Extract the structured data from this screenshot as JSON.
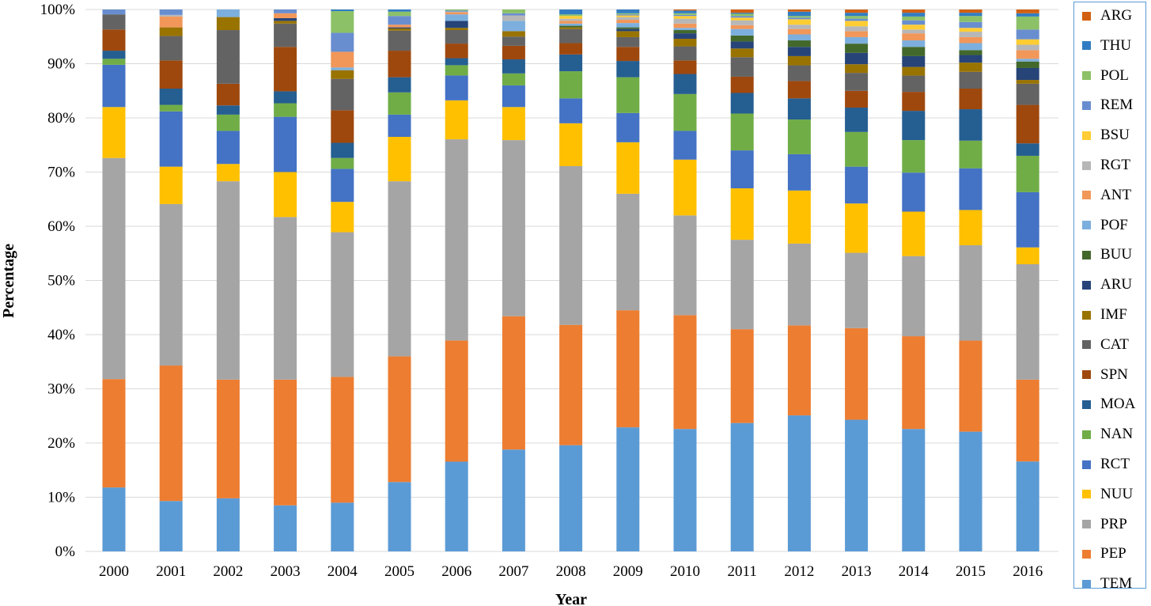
{
  "chart_data": {
    "type": "bar",
    "stacked": "percent",
    "xlabel": "Year",
    "ylabel": "Percentage",
    "ylim": [
      0,
      100
    ],
    "y_ticks": [
      "0%",
      "10%",
      "20%",
      "30%",
      "40%",
      "50%",
      "60%",
      "70%",
      "80%",
      "90%",
      "100%"
    ],
    "grid": true,
    "legend_position": "right",
    "categories": [
      "2000",
      "2001",
      "2002",
      "2003",
      "2004",
      "2005",
      "2006",
      "2007",
      "2008",
      "2009",
      "2010",
      "2011",
      "2012",
      "2013",
      "2014",
      "2015",
      "2016"
    ],
    "series": [
      {
        "name": "TEM",
        "color": "#5B9BD5",
        "values": [
          11.8,
          9.3,
          9.8,
          8.5,
          9.0,
          12.8,
          16.6,
          18.8,
          19.6,
          22.9,
          22.6,
          23.7,
          25.1,
          24.3,
          22.6,
          22.1,
          16.6
        ]
      },
      {
        "name": "PEP",
        "color": "#ED7D31",
        "values": [
          20.0,
          25.0,
          21.9,
          23.2,
          23.2,
          23.2,
          22.4,
          24.6,
          22.2,
          21.6,
          21.0,
          17.3,
          16.6,
          16.9,
          17.1,
          16.8,
          15.1
        ]
      },
      {
        "name": "PRP",
        "color": "#A5A5A5",
        "values": [
          40.8,
          29.8,
          36.6,
          30.0,
          26.7,
          32.3,
          37.2,
          32.5,
          29.3,
          21.5,
          18.4,
          16.5,
          15.1,
          13.9,
          14.8,
          17.6,
          21.3
        ]
      },
      {
        "name": "NUU",
        "color": "#FFC000",
        "values": [
          9.4,
          6.9,
          3.2,
          8.3,
          5.6,
          8.2,
          7.2,
          6.1,
          7.9,
          9.5,
          10.3,
          9.5,
          9.8,
          9.1,
          8.2,
          6.5,
          3.1
        ]
      },
      {
        "name": "RCT",
        "color": "#4472C4",
        "values": [
          7.8,
          10.2,
          6.1,
          10.2,
          6.1,
          4.1,
          4.6,
          4.0,
          4.6,
          5.4,
          5.3,
          7.0,
          6.7,
          6.8,
          7.2,
          7.7,
          10.2
        ]
      },
      {
        "name": "NAN",
        "color": "#70AD47",
        "values": [
          1.1,
          1.2,
          3.0,
          2.5,
          2.0,
          4.1,
          1.9,
          2.2,
          5.0,
          6.6,
          6.8,
          6.8,
          6.4,
          6.4,
          6.0,
          5.1,
          6.7
        ]
      },
      {
        "name": "MOA",
        "color": "#255E91",
        "values": [
          1.5,
          3.0,
          1.7,
          2.2,
          2.8,
          2.8,
          1.3,
          2.6,
          3.1,
          3.0,
          3.7,
          3.8,
          3.9,
          4.5,
          5.4,
          5.8,
          2.3
        ]
      },
      {
        "name": "SPN",
        "color": "#9E480E",
        "values": [
          3.9,
          5.2,
          4.0,
          8.2,
          6.0,
          4.9,
          2.7,
          2.5,
          2.1,
          2.6,
          2.5,
          3.0,
          3.2,
          3.1,
          3.5,
          3.8,
          7.1
        ]
      },
      {
        "name": "CAT",
        "color": "#636363",
        "values": [
          2.8,
          4.5,
          9.9,
          4.3,
          5.8,
          3.7,
          2.5,
          1.7,
          2.6,
          1.8,
          2.6,
          3.6,
          2.9,
          3.3,
          3.0,
          3.1,
          3.9
        ]
      },
      {
        "name": "IMF",
        "color": "#997300",
        "values": [
          0,
          1.6,
          2.4,
          0.5,
          1.6,
          0.4,
          0.4,
          1.0,
          0.3,
          1.1,
          1.4,
          1.6,
          1.7,
          1.6,
          1.6,
          1.7,
          0.7
        ]
      },
      {
        "name": "ARU",
        "color": "#264478",
        "values": [
          0,
          0,
          0,
          0.5,
          0,
          0.2,
          1.3,
          0,
          0,
          0.4,
          1.0,
          1.3,
          1.7,
          2.1,
          2.0,
          1.4,
          2.2
        ]
      },
      {
        "name": "BUU",
        "color": "#43682B",
        "values": [
          0,
          0,
          0,
          0,
          0,
          0,
          0,
          0,
          0.3,
          0.3,
          0.6,
          1.1,
          1.2,
          1.7,
          1.7,
          0.9,
          1.2
        ]
      },
      {
        "name": "POF",
        "color": "#7CAFDD",
        "values": [
          0,
          0,
          1.4,
          0,
          0.5,
          0,
          1.2,
          1.9,
          0.4,
          0.8,
          0.4,
          1.2,
          1.1,
          1.2,
          1.2,
          1.3,
          0.5
        ]
      },
      {
        "name": "ANT",
        "color": "#F1975A",
        "values": [
          0,
          2.0,
          0,
          0.9,
          2.9,
          0.5,
          0.4,
          0,
          0.5,
          0.6,
          0.8,
          0.7,
          1.0,
          1.1,
          1.3,
          1.1,
          1.6
        ]
      },
      {
        "name": "RGT",
        "color": "#B7B7B7",
        "values": [
          0,
          0.3,
          0,
          0,
          0,
          0,
          0.1,
          1.0,
          0.4,
          0.5,
          0.9,
          0.9,
          0.8,
          0.9,
          0.7,
          1.0,
          1.0
        ]
      },
      {
        "name": "BSU",
        "color": "#FFCD33",
        "values": [
          0,
          0,
          0,
          0,
          0,
          0,
          0,
          0,
          0.5,
          0.3,
          0.5,
          0.5,
          1.0,
          1.0,
          0.9,
          0.7,
          1.0
        ]
      },
      {
        "name": "REM",
        "color": "#698ED0",
        "values": [
          0.9,
          1.0,
          0,
          0.7,
          3.5,
          1.6,
          0.2,
          0.4,
          0,
          0.2,
          0.2,
          0.3,
          0.3,
          0.4,
          0.8,
          1.1,
          1.8
        ]
      },
      {
        "name": "POL",
        "color": "#8CC168",
        "values": [
          0,
          0,
          0,
          0,
          4.0,
          0.8,
          0.2,
          0.7,
          0.3,
          0.2,
          0.3,
          0.4,
          0.3,
          0.5,
          0.7,
          1.1,
          2.4
        ]
      },
      {
        "name": "THU",
        "color": "#327DC2",
        "values": [
          0,
          0,
          0,
          0,
          0.3,
          0.4,
          0,
          0,
          0.9,
          0.7,
          0.5,
          0.2,
          0.8,
          0.6,
          0.7,
          0.6,
          0.6
        ]
      },
      {
        "name": "ARG",
        "color": "#D26012",
        "values": [
          0,
          0,
          0,
          0,
          0,
          0,
          0,
          0,
          0,
          0,
          0.2,
          0.6,
          0.4,
          0.6,
          0.6,
          0.6,
          0.7
        ]
      }
    ]
  }
}
